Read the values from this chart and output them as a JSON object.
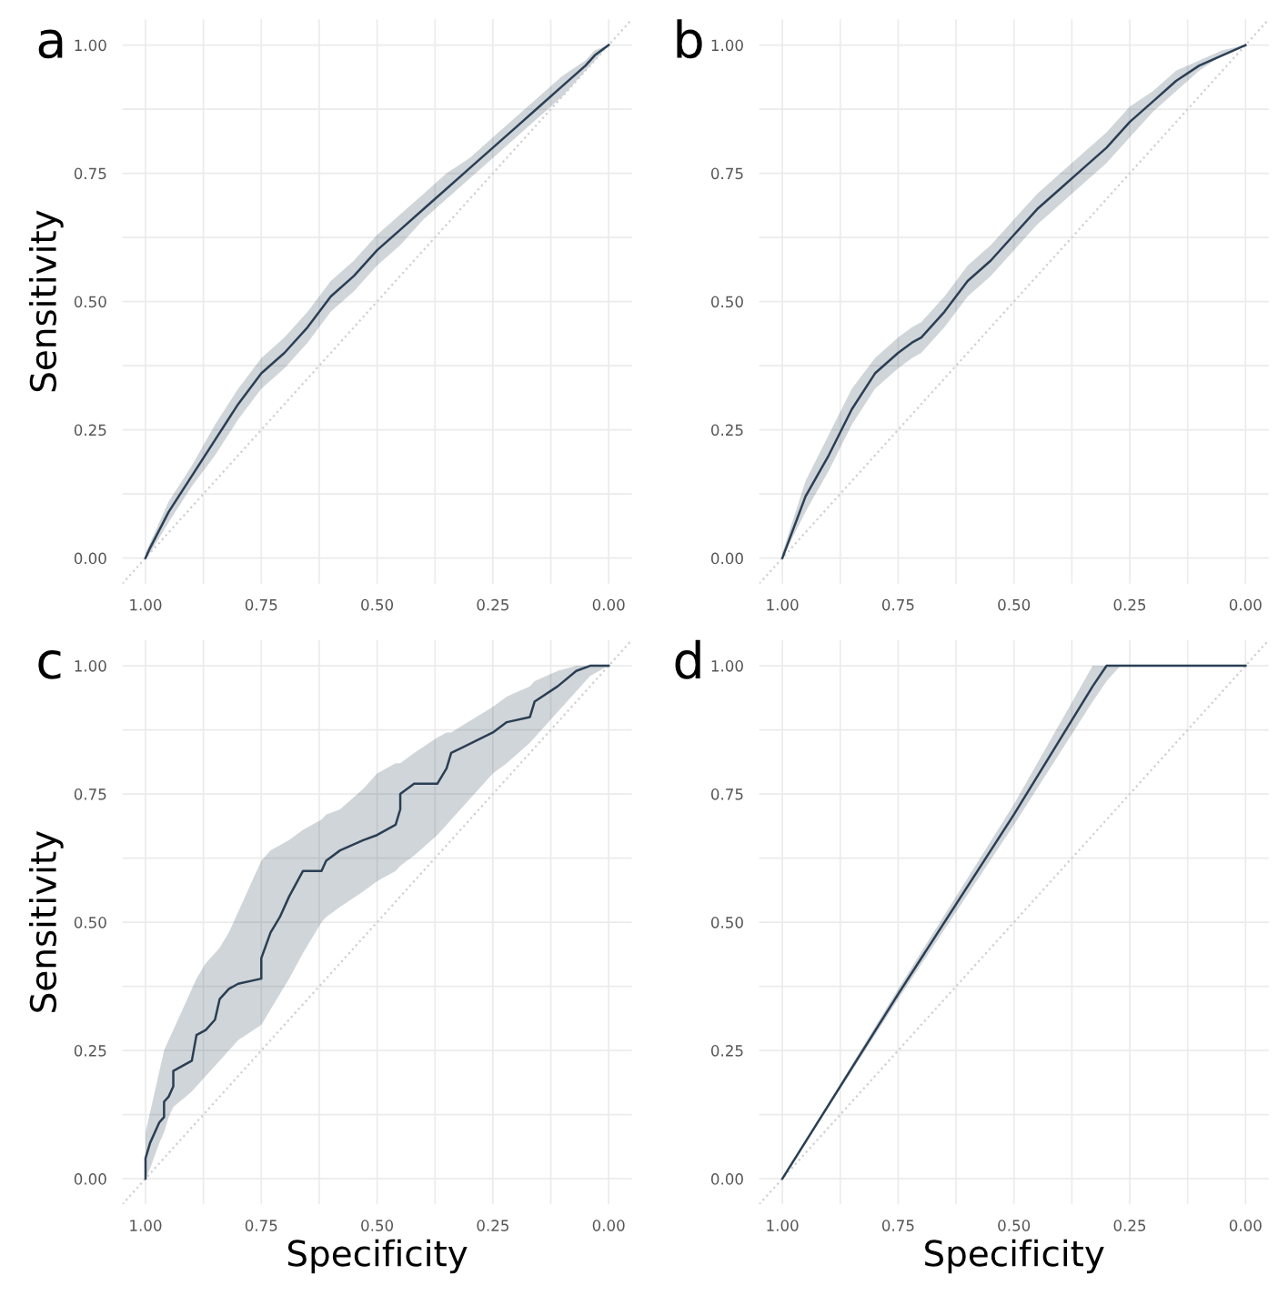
{
  "chart_data": [
    {
      "type": "line",
      "title": "a",
      "ylabel": "Sensitivity",
      "xlim": [
        1.05,
        -0.05
      ],
      "ylim": [
        -0.05,
        1.05
      ],
      "grid": true,
      "xticks": [
        {
          "value": 1,
          "label": "1.00"
        },
        {
          "value": 0.75,
          "label": "0.75"
        },
        {
          "value": 0.5,
          "label": "0.50"
        },
        {
          "value": 0.25,
          "label": "0.25"
        },
        {
          "value": 0,
          "label": "0.00"
        }
      ],
      "yticks": [
        {
          "value": 0,
          "label": "0.00"
        },
        {
          "value": 0.25,
          "label": "0.25"
        },
        {
          "value": 0.5,
          "label": "0.50"
        },
        {
          "value": 0.75,
          "label": "0.75"
        },
        {
          "value": 1,
          "label": "1.00"
        }
      ],
      "series": [
        {
          "type": "line",
          "line_style": "dotted",
          "color": "#cfcfcf",
          "x": [
            1.05,
            -0.05
          ],
          "values": [
            -0.05,
            1.05
          ]
        },
        {
          "color": "#2a3f54",
          "x": [
            1,
            0.99,
            0.95,
            0.9,
            0.85,
            0.8,
            0.75,
            0.7,
            0.65,
            0.6,
            0.55,
            0.5,
            0.45,
            0.4,
            0.35,
            0.3,
            0.25,
            0.2,
            0.15,
            0.1,
            0.05,
            0.03,
            0
          ],
          "values": [
            0,
            0.02,
            0.09,
            0.16,
            0.23,
            0.3,
            0.36,
            0.4,
            0.45,
            0.51,
            0.55,
            0.6,
            0.64,
            0.68,
            0.72,
            0.76,
            0.8,
            0.84,
            0.88,
            0.92,
            0.96,
            0.98,
            1
          ],
          "lower": [
            0,
            0.01,
            0.07,
            0.14,
            0.2,
            0.27,
            0.33,
            0.37,
            0.42,
            0.48,
            0.52,
            0.57,
            0.61,
            0.66,
            0.7,
            0.74,
            0.78,
            0.82,
            0.86,
            0.9,
            0.95,
            0.97,
            1
          ],
          "upper": [
            0.01,
            0.03,
            0.11,
            0.18,
            0.26,
            0.33,
            0.39,
            0.43,
            0.48,
            0.54,
            0.58,
            0.63,
            0.67,
            0.71,
            0.75,
            0.78,
            0.82,
            0.86,
            0.9,
            0.94,
            0.97,
            0.99,
            1
          ]
        }
      ]
    },
    {
      "type": "line",
      "title": "b",
      "xlim": [
        1.05,
        -0.05
      ],
      "ylim": [
        -0.05,
        1.05
      ],
      "grid": true,
      "xticks": [
        {
          "value": 1,
          "label": "1.00"
        },
        {
          "value": 0.75,
          "label": "0.75"
        },
        {
          "value": 0.5,
          "label": "0.50"
        },
        {
          "value": 0.25,
          "label": "0.25"
        },
        {
          "value": 0,
          "label": "0.00"
        }
      ],
      "yticks": [
        {
          "value": 0,
          "label": "0.00"
        },
        {
          "value": 0.25,
          "label": "0.25"
        },
        {
          "value": 0.5,
          "label": "0.50"
        },
        {
          "value": 0.75,
          "label": "0.75"
        },
        {
          "value": 1,
          "label": "1.00"
        }
      ],
      "series": [
        {
          "type": "line",
          "line_style": "dotted",
          "color": "#cfcfcf",
          "x": [
            1.05,
            -0.05
          ],
          "values": [
            -0.05,
            1.05
          ]
        },
        {
          "color": "#2a3f54",
          "x": [
            1,
            0.95,
            0.9,
            0.85,
            0.8,
            0.75,
            0.72,
            0.7,
            0.65,
            0.6,
            0.55,
            0.5,
            0.45,
            0.4,
            0.35,
            0.3,
            0.25,
            0.2,
            0.15,
            0.1,
            0.05,
            0
          ],
          "values": [
            0,
            0.12,
            0.2,
            0.29,
            0.36,
            0.4,
            0.42,
            0.43,
            0.48,
            0.54,
            0.58,
            0.63,
            0.68,
            0.72,
            0.76,
            0.8,
            0.85,
            0.89,
            0.93,
            0.96,
            0.98,
            1
          ],
          "lower": [
            0,
            0.09,
            0.17,
            0.26,
            0.33,
            0.37,
            0.39,
            0.4,
            0.45,
            0.51,
            0.55,
            0.6,
            0.65,
            0.69,
            0.73,
            0.77,
            0.82,
            0.87,
            0.91,
            0.95,
            0.98,
            1
          ],
          "upper": [
            0.01,
            0.15,
            0.24,
            0.33,
            0.39,
            0.43,
            0.45,
            0.46,
            0.51,
            0.57,
            0.61,
            0.66,
            0.71,
            0.75,
            0.79,
            0.83,
            0.88,
            0.91,
            0.95,
            0.97,
            0.99,
            1
          ]
        }
      ]
    },
    {
      "type": "line",
      "title": "c",
      "xlabel": "Specificity",
      "ylabel": "Sensitivity",
      "xlim": [
        1.05,
        -0.05
      ],
      "ylim": [
        -0.05,
        1.05
      ],
      "grid": true,
      "xticks": [
        {
          "value": 1,
          "label": "1.00"
        },
        {
          "value": 0.75,
          "label": "0.75"
        },
        {
          "value": 0.5,
          "label": "0.50"
        },
        {
          "value": 0.25,
          "label": "0.25"
        },
        {
          "value": 0,
          "label": "0.00"
        }
      ],
      "yticks": [
        {
          "value": 0,
          "label": "0.00"
        },
        {
          "value": 0.25,
          "label": "0.25"
        },
        {
          "value": 0.5,
          "label": "0.50"
        },
        {
          "value": 0.75,
          "label": "0.75"
        },
        {
          "value": 1,
          "label": "1.00"
        }
      ],
      "series": [
        {
          "type": "line",
          "line_style": "dotted",
          "color": "#cfcfcf",
          "x": [
            1.05,
            -0.05
          ],
          "values": [
            -0.05,
            1.05
          ]
        },
        {
          "color": "#2a3f54",
          "x": [
            1,
            1,
            0.99,
            0.97,
            0.96,
            0.96,
            0.95,
            0.94,
            0.94,
            0.9,
            0.89,
            0.87,
            0.85,
            0.84,
            0.82,
            0.8,
            0.75,
            0.75,
            0.73,
            0.71,
            0.69,
            0.66,
            0.62,
            0.61,
            0.58,
            0.53,
            0.5,
            0.46,
            0.45,
            0.45,
            0.42,
            0.37,
            0.35,
            0.34,
            0.25,
            0.22,
            0.17,
            0.16,
            0.11,
            0.07,
            0.04,
            0
          ],
          "values": [
            0,
            0.04,
            0.07,
            0.11,
            0.12,
            0.15,
            0.16,
            0.18,
            0.21,
            0.23,
            0.28,
            0.29,
            0.31,
            0.35,
            0.37,
            0.38,
            0.39,
            0.43,
            0.48,
            0.51,
            0.55,
            0.6,
            0.6,
            0.62,
            0.64,
            0.66,
            0.67,
            0.69,
            0.72,
            0.75,
            0.77,
            0.77,
            0.8,
            0.83,
            0.87,
            0.89,
            0.9,
            0.93,
            0.96,
            0.99,
            1,
            1
          ],
          "lower": [
            0,
            0,
            0.02,
            0.07,
            0.09,
            0.09,
            0.12,
            0.14,
            0.14,
            0.17,
            0.18,
            0.2,
            0.22,
            0.23,
            0.25,
            0.27,
            0.3,
            0.3,
            0.33,
            0.36,
            0.39,
            0.44,
            0.5,
            0.51,
            0.53,
            0.56,
            0.58,
            0.6,
            0.61,
            0.61,
            0.63,
            0.67,
            0.69,
            0.7,
            0.79,
            0.81,
            0.85,
            0.86,
            0.91,
            0.95,
            0.98,
            1
          ],
          "upper": [
            0.09,
            0.09,
            0.13,
            0.21,
            0.25,
            0.25,
            0.27,
            0.29,
            0.29,
            0.37,
            0.39,
            0.42,
            0.44,
            0.45,
            0.48,
            0.52,
            0.62,
            0.62,
            0.64,
            0.65,
            0.66,
            0.68,
            0.7,
            0.71,
            0.72,
            0.76,
            0.79,
            0.81,
            0.81,
            0.81,
            0.83,
            0.86,
            0.87,
            0.87,
            0.92,
            0.94,
            0.96,
            0.97,
            0.99,
            1,
            1,
            1
          ]
        }
      ]
    },
    {
      "type": "line",
      "title": "d",
      "xlabel": "Specificity",
      "xlim": [
        1.05,
        -0.05
      ],
      "ylim": [
        -0.05,
        1.05
      ],
      "grid": true,
      "xticks": [
        {
          "value": 1,
          "label": "1.00"
        },
        {
          "value": 0.75,
          "label": "0.75"
        },
        {
          "value": 0.5,
          "label": "0.50"
        },
        {
          "value": 0.25,
          "label": "0.25"
        },
        {
          "value": 0,
          "label": "0.00"
        }
      ],
      "yticks": [
        {
          "value": 0,
          "label": "0.00"
        },
        {
          "value": 0.25,
          "label": "0.25"
        },
        {
          "value": 0.5,
          "label": "0.50"
        },
        {
          "value": 0.75,
          "label": "0.75"
        },
        {
          "value": 1,
          "label": "1.00"
        }
      ],
      "series": [
        {
          "type": "line",
          "line_style": "dotted",
          "color": "#cfcfcf",
          "x": [
            1.05,
            -0.05
          ],
          "values": [
            -0.05,
            1.05
          ]
        },
        {
          "color": "#2a3f54",
          "x": [
            1,
            0.75,
            0.5,
            0.33,
            0.3,
            0.27,
            0
          ],
          "values": [
            0,
            0.36,
            0.71,
            0.96,
            1,
            1,
            1
          ],
          "lower": [
            0,
            0.35,
            0.69,
            0.93,
            0.97,
            1,
            1
          ],
          "upper": [
            0,
            0.37,
            0.73,
            1,
            1,
            1,
            1
          ]
        }
      ]
    }
  ]
}
